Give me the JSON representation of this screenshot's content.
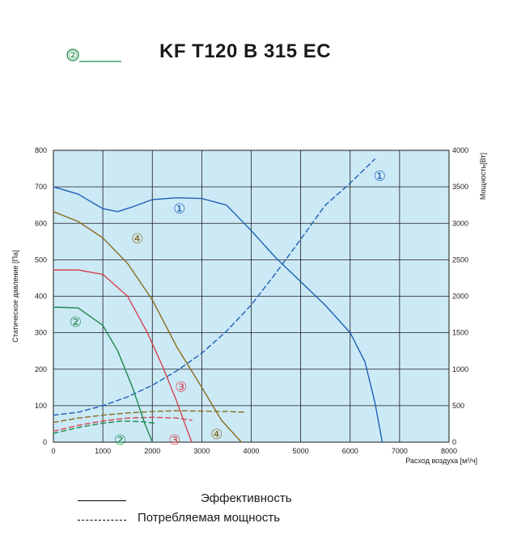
{
  "page": {
    "title": "KF T120 B 315 EC",
    "header_marker": {
      "label": "②",
      "color": "#1f8a4c"
    }
  },
  "legend": {
    "solid_label": "Эффективность",
    "dashed_label": "Потребляемая мощность"
  },
  "chart_data": {
    "type": "line",
    "xlabel": "Расход воздуха [м³/ч]",
    "ylabel": "Статическое давление [Па]",
    "y2label": "Мощность[Вт]",
    "xlim": [
      0,
      8000
    ],
    "ylim": [
      0,
      800
    ],
    "y2lim": [
      0,
      4000
    ],
    "xticks": [
      0,
      1000,
      2000,
      3000,
      4000,
      5000,
      6000,
      7000,
      8000
    ],
    "yticks": [
      0,
      100,
      200,
      300,
      400,
      500,
      600,
      700,
      800
    ],
    "y2ticks": [
      0,
      500,
      1000,
      1500,
      2000,
      2500,
      3000,
      3500,
      4000
    ],
    "grid": true,
    "background": "#cce9f6",
    "series": [
      {
        "name": "①",
        "kind": "pressure",
        "axis": "left",
        "style": "solid",
        "color": "#1f5fb5",
        "x": [
          0,
          500,
          1000,
          1300,
          1600,
          2000,
          2500,
          3000,
          3500,
          4000,
          4500,
          5000,
          5500,
          6000,
          6300,
          6500,
          6650
        ],
        "y": [
          700,
          680,
          640,
          632,
          645,
          665,
          670,
          668,
          650,
          580,
          505,
          440,
          375,
          300,
          220,
          110,
          0
        ],
        "label_at": [
          2550,
          640
        ]
      },
      {
        "name": "①",
        "kind": "power",
        "axis": "right",
        "style": "dashed",
        "color": "#1f5fb5",
        "x": [
          0,
          500,
          1000,
          1500,
          2000,
          2500,
          3000,
          3500,
          4000,
          4500,
          5000,
          5500,
          6000,
          6500
        ],
        "y": [
          370,
          410,
          500,
          620,
          780,
          980,
          1220,
          1520,
          1880,
          2320,
          2780,
          3250,
          3550,
          3880
        ],
        "label_at": [
          6600,
          3650
        ]
      },
      {
        "name": "④",
        "kind": "pressure",
        "axis": "left",
        "style": "solid",
        "color": "#8a6d1e",
        "x": [
          0,
          500,
          1000,
          1500,
          2000,
          2500,
          3000,
          3400,
          3800
        ],
        "y": [
          632,
          605,
          560,
          490,
          390,
          260,
          150,
          60,
          0
        ],
        "label_at": [
          1700,
          558
        ]
      },
      {
        "name": "④",
        "kind": "power",
        "axis": "right",
        "style": "dashed",
        "color": "#8a6d1e",
        "x": [
          0,
          500,
          1000,
          1500,
          2000,
          2500,
          3000,
          3500,
          3900
        ],
        "y": [
          270,
          330,
          370,
          400,
          420,
          430,
          425,
          420,
          410
        ],
        "label_at": [
          3300,
          110
        ]
      },
      {
        "name": "③",
        "kind": "pressure",
        "axis": "left",
        "style": "solid",
        "color": "#d4454f",
        "x": [
          0,
          500,
          1000,
          1500,
          1900,
          2200,
          2500,
          2700,
          2800
        ],
        "y": [
          472,
          472,
          460,
          400,
          300,
          210,
          110,
          35,
          0
        ],
        "label_at": [
          2580,
          152
        ]
      },
      {
        "name": "③",
        "kind": "power",
        "axis": "right",
        "style": "dashed",
        "color": "#d4454f",
        "x": [
          0,
          500,
          1000,
          1500,
          2000,
          2500,
          2800
        ],
        "y": [
          150,
          230,
          290,
          330,
          340,
          330,
          300
        ],
        "label_at": [
          2450,
          36
        ]
      },
      {
        "name": "②",
        "kind": "pressure",
        "axis": "left",
        "style": "solid",
        "color": "#1f8a4c",
        "x": [
          0,
          500,
          1000,
          1300,
          1600,
          1850,
          2000
        ],
        "y": [
          370,
          368,
          320,
          250,
          150,
          50,
          0
        ],
        "label_at": [
          450,
          330
        ]
      },
      {
        "name": "②",
        "kind": "power",
        "axis": "right",
        "style": "dashed",
        "color": "#1f8a4c",
        "x": [
          0,
          500,
          1000,
          1400,
          1800,
          2050
        ],
        "y": [
          120,
          200,
          260,
          290,
          280,
          260
        ],
        "label_at": [
          1350,
          36
        ]
      }
    ]
  }
}
